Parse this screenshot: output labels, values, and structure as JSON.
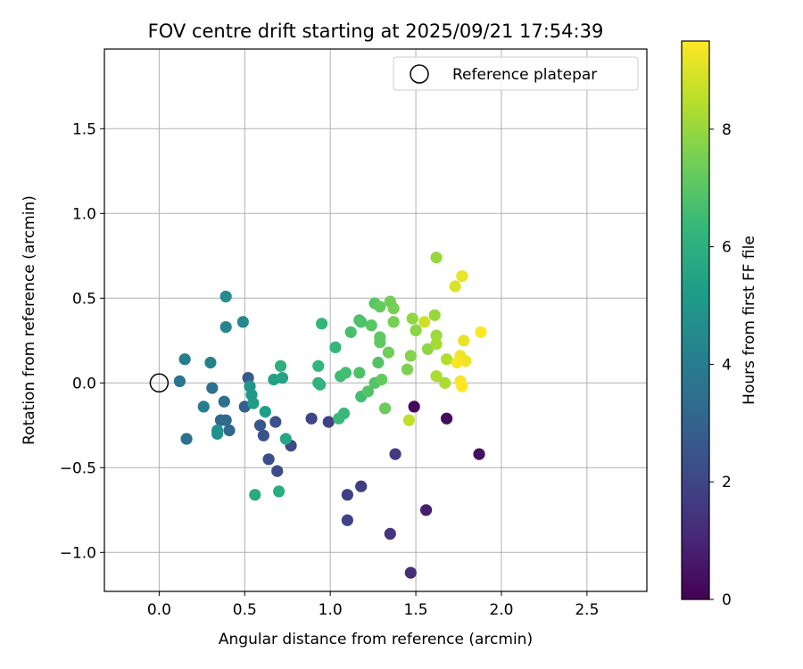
{
  "chart_data": {
    "type": "scatter",
    "title": "FOV centre drift starting at 2025/09/21 17:54:39",
    "xlabel": "Angular distance from reference (arcmin)",
    "ylabel": "Rotation from reference (arcmin)",
    "xlim": [
      -0.32,
      2.85
    ],
    "ylim": [
      -1.23,
      1.97
    ],
    "xticks": [
      0.0,
      0.5,
      1.0,
      1.5,
      2.0,
      2.5
    ],
    "xtick_labels": [
      "0.0",
      "0.5",
      "1.0",
      "1.5",
      "2.0",
      "2.5"
    ],
    "yticks": [
      -1.0,
      -0.5,
      0.0,
      0.5,
      1.0,
      1.5
    ],
    "ytick_labels": [
      "−1.0",
      "−0.5",
      "0.0",
      "0.5",
      "1.0",
      "1.5"
    ],
    "grid": true,
    "legend": {
      "position": "top-right",
      "entries": [
        "Reference platepar"
      ]
    },
    "reference_point": {
      "x": 0.0,
      "y": 0.0,
      "label": "Reference platepar"
    },
    "colorbar": {
      "label": "Hours from first FF file",
      "range": [
        0,
        9.5
      ],
      "ticks": [
        0,
        2,
        4,
        6,
        8
      ],
      "tick_labels": [
        "0",
        "2",
        "4",
        "6",
        "8"
      ],
      "colormap": [
        "#440154",
        "#482878",
        "#3e4989",
        "#31688e",
        "#26828e",
        "#1f9e89",
        "#35b779",
        "#6ece58",
        "#b5de2b",
        "#fde725"
      ]
    },
    "points": [
      {
        "x": 1.49,
        "y": -0.14,
        "h": 0.2
      },
      {
        "x": 1.68,
        "y": -0.21,
        "h": 0.3
      },
      {
        "x": 1.87,
        "y": -0.42,
        "h": 0.4
      },
      {
        "x": 1.56,
        "y": -0.75,
        "h": 0.8
      },
      {
        "x": 1.47,
        "y": -1.12,
        "h": 1.2
      },
      {
        "x": 1.35,
        "y": -0.89,
        "h": 1.5
      },
      {
        "x": 1.38,
        "y": -0.42,
        "h": 1.6
      },
      {
        "x": 1.18,
        "y": -0.61,
        "h": 1.7
      },
      {
        "x": 1.1,
        "y": -0.66,
        "h": 1.8
      },
      {
        "x": 1.1,
        "y": -0.81,
        "h": 1.9
      },
      {
        "x": 0.99,
        "y": -0.23,
        "h": 1.9
      },
      {
        "x": 0.89,
        "y": -0.21,
        "h": 2.0
      },
      {
        "x": 0.77,
        "y": -0.37,
        "h": 2.1
      },
      {
        "x": 0.69,
        "y": -0.52,
        "h": 2.2
      },
      {
        "x": 0.64,
        "y": -0.45,
        "h": 2.3
      },
      {
        "x": 0.68,
        "y": -0.23,
        "h": 2.4
      },
      {
        "x": 0.61,
        "y": -0.31,
        "h": 2.5
      },
      {
        "x": 0.59,
        "y": -0.25,
        "h": 2.6
      },
      {
        "x": 0.52,
        "y": 0.03,
        "h": 2.7
      },
      {
        "x": 0.5,
        "y": -0.14,
        "h": 2.9
      },
      {
        "x": 0.41,
        "y": -0.28,
        "h": 3.1
      },
      {
        "x": 0.36,
        "y": -0.22,
        "h": 3.2
      },
      {
        "x": 0.39,
        "y": -0.22,
        "h": 3.3
      },
      {
        "x": 0.38,
        "y": -0.11,
        "h": 3.4
      },
      {
        "x": 0.31,
        "y": -0.03,
        "h": 3.5
      },
      {
        "x": 0.16,
        "y": -0.33,
        "h": 3.6
      },
      {
        "x": 0.12,
        "y": 0.01,
        "h": 3.7
      },
      {
        "x": 0.26,
        "y": -0.14,
        "h": 4.0
      },
      {
        "x": 0.15,
        "y": 0.14,
        "h": 4.0
      },
      {
        "x": 0.3,
        "y": 0.12,
        "h": 4.2
      },
      {
        "x": 0.39,
        "y": 0.33,
        "h": 4.4
      },
      {
        "x": 0.49,
        "y": 0.36,
        "h": 4.5
      },
      {
        "x": 0.39,
        "y": 0.51,
        "h": 4.6
      },
      {
        "x": 0.34,
        "y": -0.3,
        "h": 4.7
      },
      {
        "x": 0.34,
        "y": -0.28,
        "h": 4.8
      },
      {
        "x": 0.53,
        "y": -0.02,
        "h": 5.0
      },
      {
        "x": 0.54,
        "y": -0.07,
        "h": 5.1
      },
      {
        "x": 0.55,
        "y": -0.12,
        "h": 5.2
      },
      {
        "x": 0.62,
        "y": -0.17,
        "h": 5.3
      },
      {
        "x": 0.67,
        "y": 0.02,
        "h": 5.4
      },
      {
        "x": 0.72,
        "y": 0.03,
        "h": 5.5
      },
      {
        "x": 0.74,
        "y": -0.33,
        "h": 5.6
      },
      {
        "x": 0.56,
        "y": -0.66,
        "h": 5.8
      },
      {
        "x": 0.7,
        "y": -0.64,
        "h": 5.9
      },
      {
        "x": 0.71,
        "y": 0.1,
        "h": 6.0
      },
      {
        "x": 0.93,
        "y": 0.0,
        "h": 6.1
      },
      {
        "x": 0.94,
        "y": -0.01,
        "h": 6.2
      },
      {
        "x": 0.93,
        "y": 0.1,
        "h": 6.2
      },
      {
        "x": 0.95,
        "y": 0.35,
        "h": 6.3
      },
      {
        "x": 1.03,
        "y": 0.21,
        "h": 6.3
      },
      {
        "x": 1.05,
        "y": -0.21,
        "h": 6.4
      },
      {
        "x": 1.08,
        "y": -0.18,
        "h": 6.4
      },
      {
        "x": 1.06,
        "y": 0.04,
        "h": 6.5
      },
      {
        "x": 1.09,
        "y": 0.06,
        "h": 6.6
      },
      {
        "x": 1.18,
        "y": -0.08,
        "h": 6.6
      },
      {
        "x": 1.12,
        "y": 0.3,
        "h": 6.7
      },
      {
        "x": 1.17,
        "y": 0.37,
        "h": 6.7
      },
      {
        "x": 1.18,
        "y": 0.36,
        "h": 6.8
      },
      {
        "x": 1.17,
        "y": 0.06,
        "h": 6.8
      },
      {
        "x": 1.22,
        "y": -0.05,
        "h": 6.9
      },
      {
        "x": 1.26,
        "y": 0.0,
        "h": 6.9
      },
      {
        "x": 1.28,
        "y": 0.12,
        "h": 6.9
      },
      {
        "x": 1.24,
        "y": 0.34,
        "h": 7.0
      },
      {
        "x": 1.26,
        "y": 0.47,
        "h": 7.0
      },
      {
        "x": 1.29,
        "y": 0.27,
        "h": 7.1
      },
      {
        "x": 1.29,
        "y": 0.24,
        "h": 7.1
      },
      {
        "x": 1.3,
        "y": 0.02,
        "h": 7.2
      },
      {
        "x": 1.29,
        "y": 0.45,
        "h": 7.2
      },
      {
        "x": 1.32,
        "y": -0.15,
        "h": 7.3
      },
      {
        "x": 1.34,
        "y": 0.18,
        "h": 7.4
      },
      {
        "x": 1.35,
        "y": 0.48,
        "h": 7.4
      },
      {
        "x": 1.37,
        "y": 0.44,
        "h": 7.5
      },
      {
        "x": 1.37,
        "y": 0.36,
        "h": 7.5
      },
      {
        "x": 1.45,
        "y": 0.08,
        "h": 7.6
      },
      {
        "x": 1.47,
        "y": 0.16,
        "h": 7.7
      },
      {
        "x": 1.5,
        "y": 0.31,
        "h": 7.8
      },
      {
        "x": 1.48,
        "y": 0.38,
        "h": 7.9
      },
      {
        "x": 1.57,
        "y": 0.2,
        "h": 7.9
      },
      {
        "x": 1.61,
        "y": 0.4,
        "h": 8.0
      },
      {
        "x": 1.62,
        "y": 0.74,
        "h": 8.0
      },
      {
        "x": 1.62,
        "y": 0.28,
        "h": 8.1
      },
      {
        "x": 1.62,
        "y": 0.23,
        "h": 8.2
      },
      {
        "x": 1.62,
        "y": 0.04,
        "h": 8.3
      },
      {
        "x": 1.67,
        "y": 0.0,
        "h": 8.3
      },
      {
        "x": 1.68,
        "y": 0.14,
        "h": 8.4
      },
      {
        "x": 1.46,
        "y": -0.22,
        "h": 8.6
      },
      {
        "x": 1.55,
        "y": 0.36,
        "h": 8.8
      },
      {
        "x": 1.73,
        "y": 0.57,
        "h": 9.0
      },
      {
        "x": 1.77,
        "y": 0.63,
        "h": 9.2
      },
      {
        "x": 1.78,
        "y": 0.25,
        "h": 9.2
      },
      {
        "x": 1.76,
        "y": 0.16,
        "h": 9.3
      },
      {
        "x": 1.79,
        "y": 0.13,
        "h": 9.3
      },
      {
        "x": 1.74,
        "y": 0.12,
        "h": 9.4
      },
      {
        "x": 1.76,
        "y": 0.01,
        "h": 9.4
      },
      {
        "x": 1.77,
        "y": -0.02,
        "h": 9.5
      },
      {
        "x": 1.88,
        "y": 0.3,
        "h": 9.5
      }
    ]
  }
}
